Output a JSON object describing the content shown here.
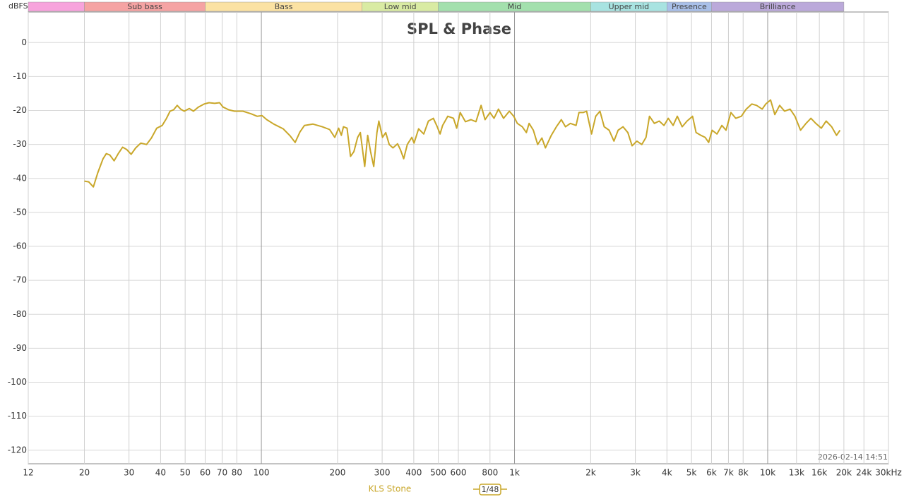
{
  "chart_data": {
    "type": "line",
    "title": "SPL & Phase",
    "y_label": "dBFS",
    "timestamp": "2026-02-14 14:51",
    "smoothing": "1/48",
    "log_x": true,
    "grid": true,
    "xlim": [
      12,
      30000
    ],
    "ylim": [
      -124,
      9
    ],
    "yticks": [
      0,
      -10,
      -20,
      -30,
      -40,
      -50,
      -60,
      -70,
      -80,
      -90,
      -100,
      -110,
      -120
    ],
    "xticks": [
      12,
      20,
      30,
      40,
      50,
      60,
      70,
      80,
      100,
      200,
      300,
      400,
      500,
      600,
      800,
      {
        "value": 1000,
        "label": "1k"
      },
      {
        "value": 2000,
        "label": "2k"
      },
      {
        "value": 3000,
        "label": "3k"
      },
      {
        "value": 4000,
        "label": "4k"
      },
      {
        "value": 5000,
        "label": "5k"
      },
      {
        "value": 6000,
        "label": "6k"
      },
      {
        "value": 7000,
        "label": "7k"
      },
      {
        "value": 8000,
        "label": "8k"
      },
      {
        "value": 10000,
        "label": "10k"
      },
      {
        "value": 13000,
        "label": "13k"
      },
      {
        "value": 16000,
        "label": "16k"
      },
      {
        "value": 20000,
        "label": "20k"
      },
      {
        "value": 24000,
        "label": "24k"
      },
      {
        "value": 30000,
        "label": "30kHz"
      }
    ],
    "bands": [
      {
        "name": null,
        "from": 12,
        "to": 20,
        "color": "#f7a3dc"
      },
      {
        "name": "Sub bass",
        "from": 20,
        "to": 60,
        "color": "#f5a3a3"
      },
      {
        "name": "Bass",
        "from": 60,
        "to": 250,
        "color": "#fbe2a3"
      },
      {
        "name": "Low mid",
        "from": 250,
        "to": 500,
        "color": "#d9eba3"
      },
      {
        "name": "Mid",
        "from": 500,
        "to": 2000,
        "color": "#a3e0ad"
      },
      {
        "name": "Upper mid",
        "from": 2000,
        "to": 4000,
        "color": "#a8e3e1"
      },
      {
        "name": "Presence",
        "from": 4000,
        "to": 6000,
        "color": "#a9c0e9"
      },
      {
        "name": "Brilliance",
        "from": 6000,
        "to": 20000,
        "color": "#bba9da"
      }
    ],
    "x": [
      20,
      20.8,
      21.7,
      22.6,
      23.7,
      24.4,
      25.2,
      26.2,
      27.2,
      28.3,
      29.4,
      30.6,
      31.9,
      33.4,
      35.2,
      36.8,
      38.6,
      40.6,
      42.2,
      43.6,
      45,
      46.5,
      48,
      49.6,
      51.9,
      53.9,
      56.4,
      59.4,
      62.1,
      65.4,
      68.4,
      70.6,
      74.4,
      78.3,
      84.6,
      91.4,
      96.2,
      100.6,
      105,
      112,
      122,
      130,
      136,
      142,
      148,
      160,
      174,
      186,
      195,
      202,
      207,
      211,
      218,
      225,
      232,
      240,
      246,
      256,
      263,
      270,
      278,
      286,
      291,
      301,
      310,
      320,
      331,
      345,
      354,
      365,
      377,
      393,
      401,
      418,
      438,
      457,
      478,
      495,
      508,
      520,
      545,
      574,
      591,
      610,
      640,
      673,
      704,
      738,
      765,
      800,
      830,
      864,
      905,
      954,
      993,
      1026,
      1073,
      1114,
      1142,
      1187,
      1234,
      1283,
      1325,
      1397,
      1463,
      1531,
      1590,
      1662,
      1751,
      1797,
      1867,
      1927,
      2015,
      2093,
      2175,
      2261,
      2364,
      2471,
      2566,
      2683,
      2804,
      2914,
      3044,
      3182,
      3307,
      3413,
      3567,
      3728,
      3896,
      4048,
      4231,
      4396,
      4595,
      4802,
      5051,
      5213,
      5448,
      5660,
      5844,
      6034,
      6306,
      6591,
      6848,
      7157,
      7480,
      7869,
      8225,
      8653,
      9043,
      9513,
      9821,
      10270,
      10670,
      11150,
      11660,
      12260,
      12820,
      13480,
      14180,
      14820,
      15490,
      16290,
      17020,
      17900,
      18710,
      19310
    ],
    "series": [
      {
        "name": "KLS Stone",
        "color": "#c9a72a",
        "values": [
          -40.8,
          -41.0,
          -42.5,
          -38.3,
          -34.2,
          -32.7,
          -33.1,
          -34.8,
          -32.7,
          -30.8,
          -31.5,
          -32.9,
          -31.0,
          -29.6,
          -30.0,
          -28.1,
          -25.2,
          -24.4,
          -22.3,
          -20.2,
          -19.8,
          -18.5,
          -19.6,
          -20.2,
          -19.4,
          -20.2,
          -19.0,
          -18.1,
          -17.7,
          -17.9,
          -17.7,
          -19.0,
          -19.8,
          -20.2,
          -20.2,
          -21.0,
          -21.7,
          -21.5,
          -22.7,
          -24.0,
          -25.4,
          -27.5,
          -29.4,
          -26.3,
          -24.4,
          -24.0,
          -24.8,
          -25.6,
          -27.9,
          -25.2,
          -27.3,
          -24.8,
          -25.2,
          -33.5,
          -32.1,
          -27.9,
          -26.5,
          -36.5,
          -27.3,
          -32.1,
          -36.5,
          -26.5,
          -23.1,
          -27.9,
          -26.5,
          -30.0,
          -31.0,
          -29.8,
          -31.5,
          -34.2,
          -30.0,
          -27.9,
          -29.6,
          -25.4,
          -26.9,
          -23.1,
          -22.3,
          -24.8,
          -26.9,
          -24.4,
          -21.7,
          -22.3,
          -25.2,
          -20.6,
          -23.3,
          -22.7,
          -23.3,
          -18.5,
          -22.7,
          -20.6,
          -22.3,
          -19.6,
          -22.3,
          -20.2,
          -21.7,
          -23.8,
          -24.8,
          -26.5,
          -23.8,
          -25.8,
          -30.0,
          -28.1,
          -31.0,
          -27.3,
          -24.8,
          -22.7,
          -24.8,
          -23.8,
          -24.4,
          -20.6,
          -20.6,
          -20.2,
          -26.9,
          -21.7,
          -20.2,
          -24.8,
          -25.8,
          -29.0,
          -25.8,
          -24.8,
          -26.5,
          -30.4,
          -29.0,
          -30.0,
          -27.9,
          -21.7,
          -23.8,
          -23.1,
          -24.4,
          -22.3,
          -24.4,
          -21.7,
          -24.8,
          -23.1,
          -21.7,
          -26.5,
          -27.3,
          -27.9,
          -29.4,
          -25.8,
          -26.9,
          -24.4,
          -25.8,
          -20.6,
          -22.3,
          -21.7,
          -19.6,
          -18.1,
          -18.5,
          -19.6,
          -18.1,
          -16.9,
          -21.2,
          -18.5,
          -20.2,
          -19.6,
          -21.7,
          -25.8,
          -23.8,
          -22.3,
          -23.8,
          -25.2,
          -23.1,
          -24.8,
          -27.3,
          -25.8
        ]
      }
    ]
  }
}
